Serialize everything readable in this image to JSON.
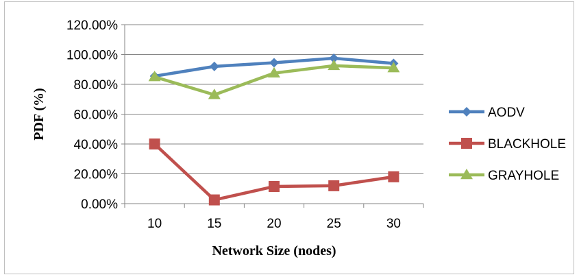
{
  "chart_data": {
    "type": "line",
    "title": "",
    "xlabel": "Network Size (nodes)",
    "ylabel": "PDF (%)",
    "categories": [
      "10",
      "15",
      "20",
      "25",
      "30"
    ],
    "yticks": [
      "0.00%",
      "20.00%",
      "40.00%",
      "60.00%",
      "80.00%",
      "100.00%",
      "120.00%"
    ],
    "ylim": [
      0,
      120
    ],
    "grid": true,
    "legend_position": "right",
    "series": [
      {
        "name": "AODV",
        "values": [
          85.5,
          92,
          94.5,
          97.5,
          94
        ],
        "color": "#4f81bd",
        "marker": "diamond"
      },
      {
        "name": "BLACKHOLE",
        "values": [
          40,
          2.5,
          11.5,
          12,
          18
        ],
        "color": "#c0504d",
        "marker": "square"
      },
      {
        "name": "GRAYHOLE",
        "values": [
          85,
          73,
          87.5,
          92.5,
          91
        ],
        "color": "#9bbb59",
        "marker": "triangle"
      }
    ]
  }
}
